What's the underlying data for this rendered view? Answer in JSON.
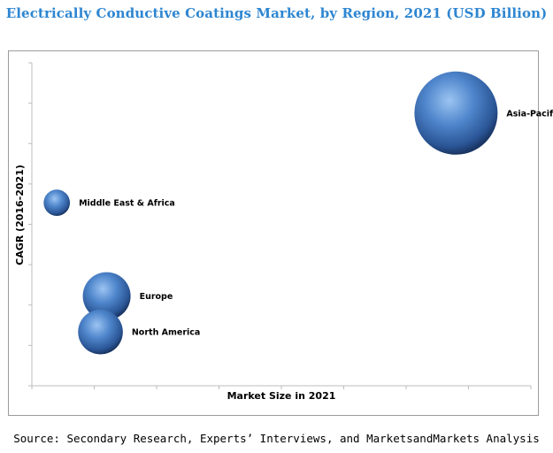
{
  "chart_data": {
    "type": "bubble",
    "title": "Electrically  Conductive Coatings Market, by Region, 2021 (USD Billion)",
    "xlabel": "Market Size in 2021",
    "ylabel": "CAGR (2016-2021)",
    "grid": false,
    "legend": "none",
    "bubble_color": "#3a6fb5",
    "series": [
      {
        "label": "Asia-Pacific",
        "x": 6.8,
        "y": 7.1,
        "size": 10.0
      },
      {
        "label": "Middle East & Africa",
        "x": 0.4,
        "y": 4.6,
        "size": 1.0
      },
      {
        "label": "Europe",
        "x": 1.2,
        "y": 2.0,
        "size": 3.3
      },
      {
        "label": "North America",
        "x": 1.1,
        "y": 1.0,
        "size": 2.9
      }
    ],
    "xlim": [
      0,
      8
    ],
    "ylim": [
      -0.5,
      8.5
    ]
  },
  "source": "Source: Secondary Research, Experts’ Interviews, and MarketsandMarkets Analysis"
}
